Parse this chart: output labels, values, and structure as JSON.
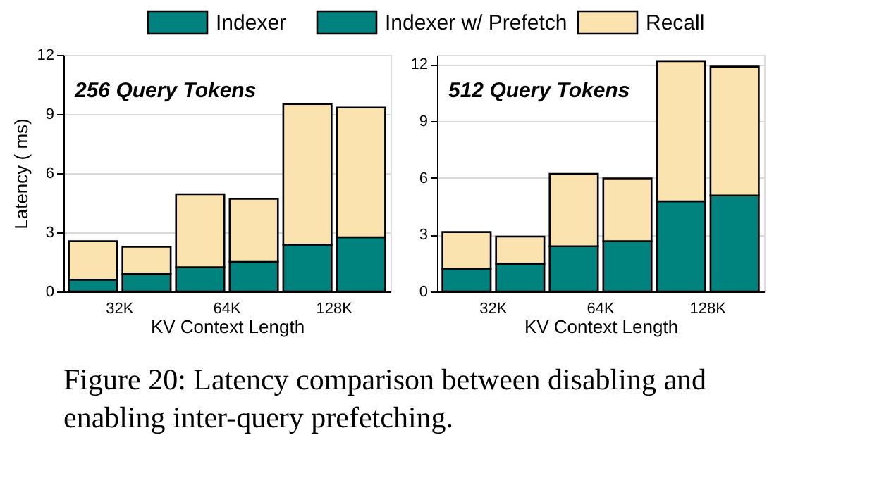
{
  "chart_data": [
    {
      "type": "bar",
      "stacked": true,
      "xlabel": "KV Context Length",
      "ylabel": "Latency ( ms)",
      "categories": [
        "32K",
        null,
        "64K",
        null,
        "128K",
        null
      ],
      "ylim": [
        0,
        12
      ],
      "yticks": [
        0,
        3,
        6,
        9,
        12
      ],
      "grid": "y",
      "legend": "top",
      "series": [
        {
          "name": "Indexer",
          "color": "#00827f",
          "values": [
            0.6,
            null,
            1.23,
            null,
            2.38,
            null
          ]
        },
        {
          "name": "Indexer w/ Prefetch",
          "color": "#00827f",
          "values": [
            null,
            0.88,
            null,
            1.5,
            null,
            2.75
          ]
        },
        {
          "name": "Recall",
          "color": "#fbe3b0",
          "values": [
            1.95,
            1.39,
            3.7,
            3.2,
            7.13,
            6.58
          ]
        }
      ],
      "annotations": [
        "256 Query Tokens",
        "Figure 20: Latency comparison between disabling and enabling inter-query prefetching."
      ]
    },
    {
      "type": "bar",
      "stacked": true,
      "xlabel": "KV Context Length",
      "categories": [
        "32K",
        null,
        "64K",
        null,
        "128K",
        null
      ],
      "ylim": [
        0,
        12.5
      ],
      "yticks": [
        0,
        3,
        6,
        9,
        12
      ],
      "grid": "y",
      "series": [
        {
          "color": "#00827f",
          "values": [
            1.21,
            null,
            2.39,
            null,
            4.76,
            null
          ]
        },
        {
          "color": "#00827f",
          "values": [
            null,
            1.47,
            null,
            2.66,
            null,
            5.07
          ]
        },
        {
          "color": "#fbe3b0",
          "values": [
            1.93,
            1.43,
            3.82,
            3.31,
            7.41,
            6.81
          ]
        }
      ],
      "annotations": [
        "512 Query Tokens"
      ]
    }
  ]
}
